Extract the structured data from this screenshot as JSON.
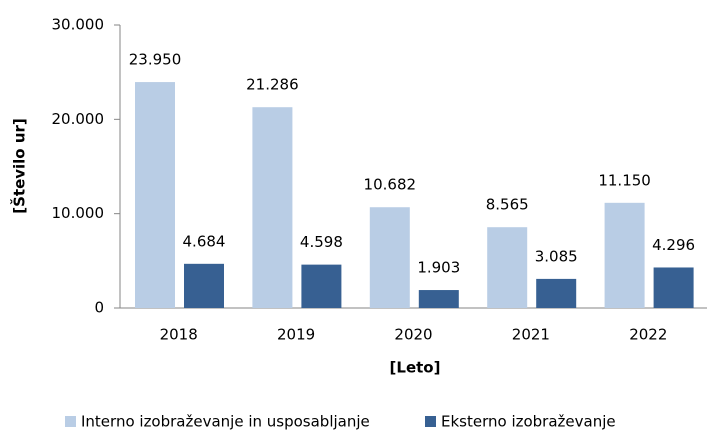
{
  "chart_data": {
    "type": "bar",
    "x_label": "[Leto]",
    "y_label": "[Število ur]",
    "categories": [
      "2018",
      "2019",
      "2020",
      "2021",
      "2022"
    ],
    "series": [
      {
        "name": "Interno izobraževanje in usposabljanje",
        "color": "#b9cde5",
        "values": [
          23950,
          21286,
          10682,
          8565,
          11150
        ],
        "value_labels": [
          "23.950",
          "21.286",
          "10.682",
          "8.565",
          "11.150"
        ]
      },
      {
        "name": "Eksterno izobraževanje",
        "color": "#376092",
        "values": [
          4684,
          4598,
          1903,
          3085,
          4296
        ],
        "value_labels": [
          "4.684",
          "4.598",
          "1.903",
          "3.085",
          "4.296"
        ]
      }
    ],
    "ylim": [
      0,
      30000
    ],
    "yticks": [
      0,
      {
        "value": 10000,
        "label": "10.000"
      },
      {
        "value": 20000,
        "label": "20.000"
      },
      {
        "value": 30000,
        "label": "30.000"
      }
    ],
    "grid": false,
    "legend": "bottom"
  }
}
